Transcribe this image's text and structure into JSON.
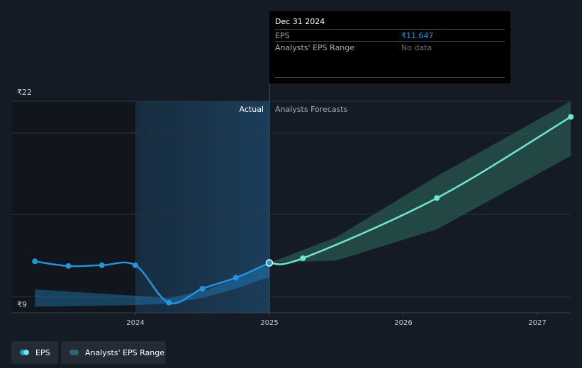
{
  "chart_data": {
    "type": "line",
    "title": "",
    "xlabel": "",
    "ylabel": "",
    "y_tick_labels": [
      "₹22",
      "₹9"
    ],
    "ylim": [
      9,
      22
    ],
    "x_tick_labels": [
      "2024",
      "2025",
      "2026",
      "2027"
    ],
    "region_labels": {
      "actual": "Actual",
      "forecast": "Analysts Forecasts"
    },
    "series": [
      {
        "name": "EPS",
        "kind": "actual",
        "color": "#2394df",
        "points": [
          {
            "x": 2023.25,
            "y": 11.75
          },
          {
            "x": 2023.5,
            "y": 11.45
          },
          {
            "x": 2023.75,
            "y": 11.5
          },
          {
            "x": 2024.0,
            "y": 11.5
          },
          {
            "x": 2024.25,
            "y": 9.1
          },
          {
            "x": 2024.5,
            "y": 10.0
          },
          {
            "x": 2024.75,
            "y": 10.7
          },
          {
            "x": 2025.0,
            "y": 11.65
          }
        ]
      },
      {
        "name": "EPS",
        "kind": "forecast",
        "color": "#6fe8cf",
        "points": [
          {
            "x": 2025.0,
            "y": 11.65
          },
          {
            "x": 2025.25,
            "y": 11.95
          },
          {
            "x": 2026.25,
            "y": 15.8
          },
          {
            "x": 2027.25,
            "y": 21.0
          }
        ]
      }
    ],
    "ranges": [
      {
        "name": "Analysts' EPS Range",
        "kind": "actual",
        "color": "#2394df",
        "points": [
          {
            "x": 2023.25,
            "low": 8.85,
            "high": 9.95
          },
          {
            "x": 2024.0,
            "low": 8.95,
            "high": 9.55
          },
          {
            "x": 2024.25,
            "low": 9.05,
            "high": 9.4
          },
          {
            "x": 2024.5,
            "low": 9.4,
            "high": 9.85
          },
          {
            "x": 2024.75,
            "low": 10.0,
            "high": 10.6
          },
          {
            "x": 2025.0,
            "low": 10.75,
            "high": 11.65
          }
        ]
      },
      {
        "name": "Analysts' EPS Range",
        "kind": "forecast",
        "color": "#2f6b60",
        "points": [
          {
            "x": 2025.0,
            "low": 11.65,
            "high": 11.65
          },
          {
            "x": 2025.5,
            "low": 11.8,
            "high": 13.3
          },
          {
            "x": 2026.25,
            "low": 13.8,
            "high": 17.2
          },
          {
            "x": 2027.25,
            "low": 18.5,
            "high": 22.0
          }
        ]
      }
    ],
    "grid": true,
    "highlight_point": {
      "x": 2025.0,
      "y": 11.65
    }
  },
  "tooltip": {
    "date": "Dec 31 2024",
    "rows": [
      {
        "label": "EPS",
        "value": "₹11.647",
        "color": "#2394df"
      },
      {
        "label": "Analysts' EPS Range",
        "value": "No data",
        "color": "#6b7078"
      }
    ]
  },
  "legend": {
    "items": [
      {
        "label": "EPS",
        "dot1": "#2394df",
        "dot2": "#6fe8cf"
      },
      {
        "label": "Analysts' EPS Range",
        "dot1": "#2b5f8e",
        "dot2": "#2f6b60"
      }
    ]
  }
}
